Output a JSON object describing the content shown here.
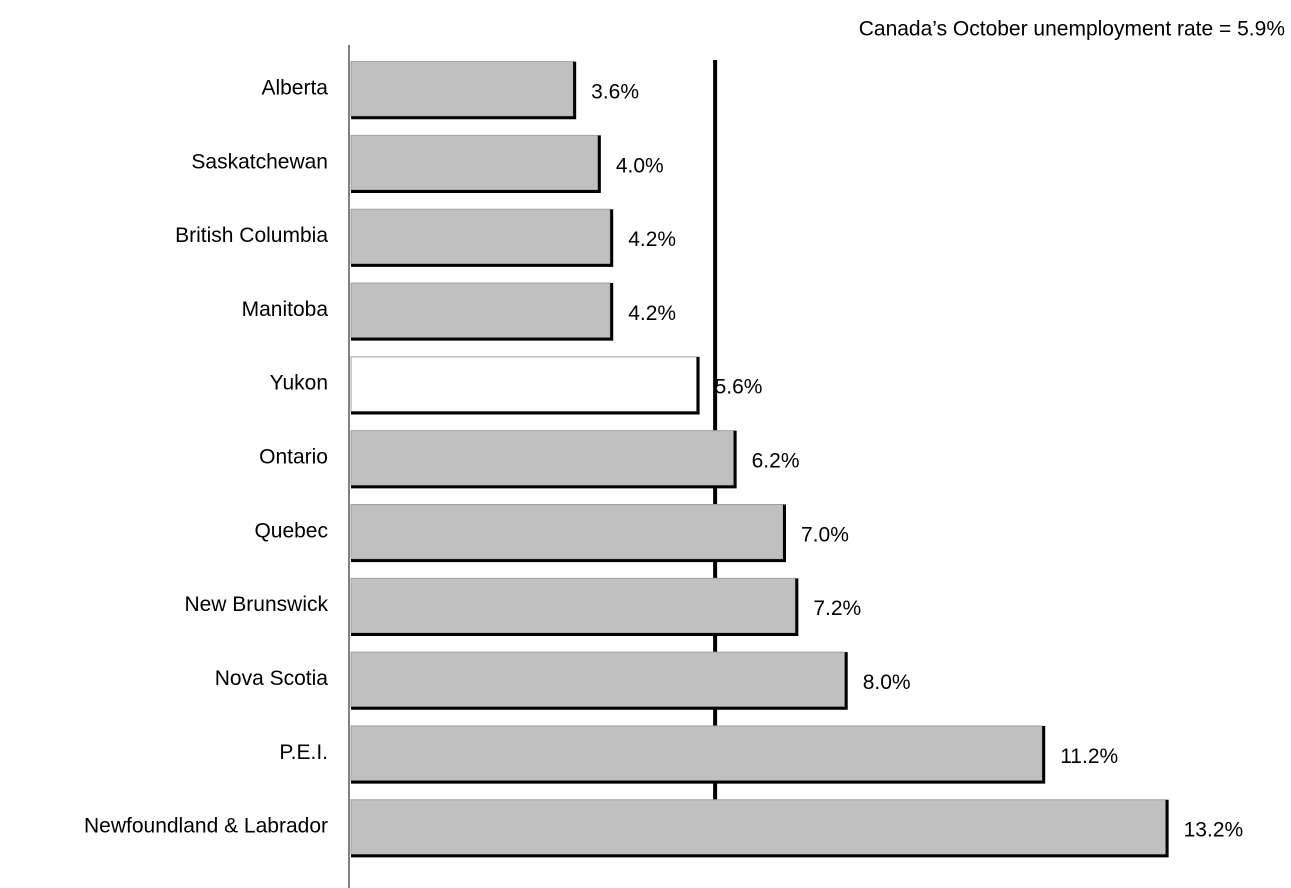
{
  "chart_data": {
    "type": "bar",
    "orientation": "horizontal",
    "annotation": "Canada’s October unemployment rate = 5.9%",
    "reference_value": 5.9,
    "categories": [
      "Alberta",
      "Saskatchewan",
      "British Columbia",
      "Manitoba",
      "Yukon",
      "Ontario",
      "Quebec",
      "New Brunswick",
      "Nova Scotia",
      "P.E.I.",
      "Newfoundland & Labrador"
    ],
    "values": [
      3.6,
      4.0,
      4.2,
      4.2,
      5.6,
      6.2,
      7.0,
      7.2,
      8.0,
      11.2,
      13.2
    ],
    "value_labels": [
      "3.6%",
      "4.0%",
      "4.2%",
      "4.2%",
      "5.6%",
      "6.2%",
      "7.0%",
      "7.2%",
      "8.0%",
      "11.2%",
      "13.2%"
    ],
    "colors": [
      "#c0c0c0",
      "#c0c0c0",
      "#c0c0c0",
      "#c0c0c0",
      "#ffffff",
      "#c0c0c0",
      "#c0c0c0",
      "#c0c0c0",
      "#c0c0c0",
      "#c0c0c0",
      "#c0c0c0"
    ],
    "xlim": [
      0,
      14
    ]
  }
}
